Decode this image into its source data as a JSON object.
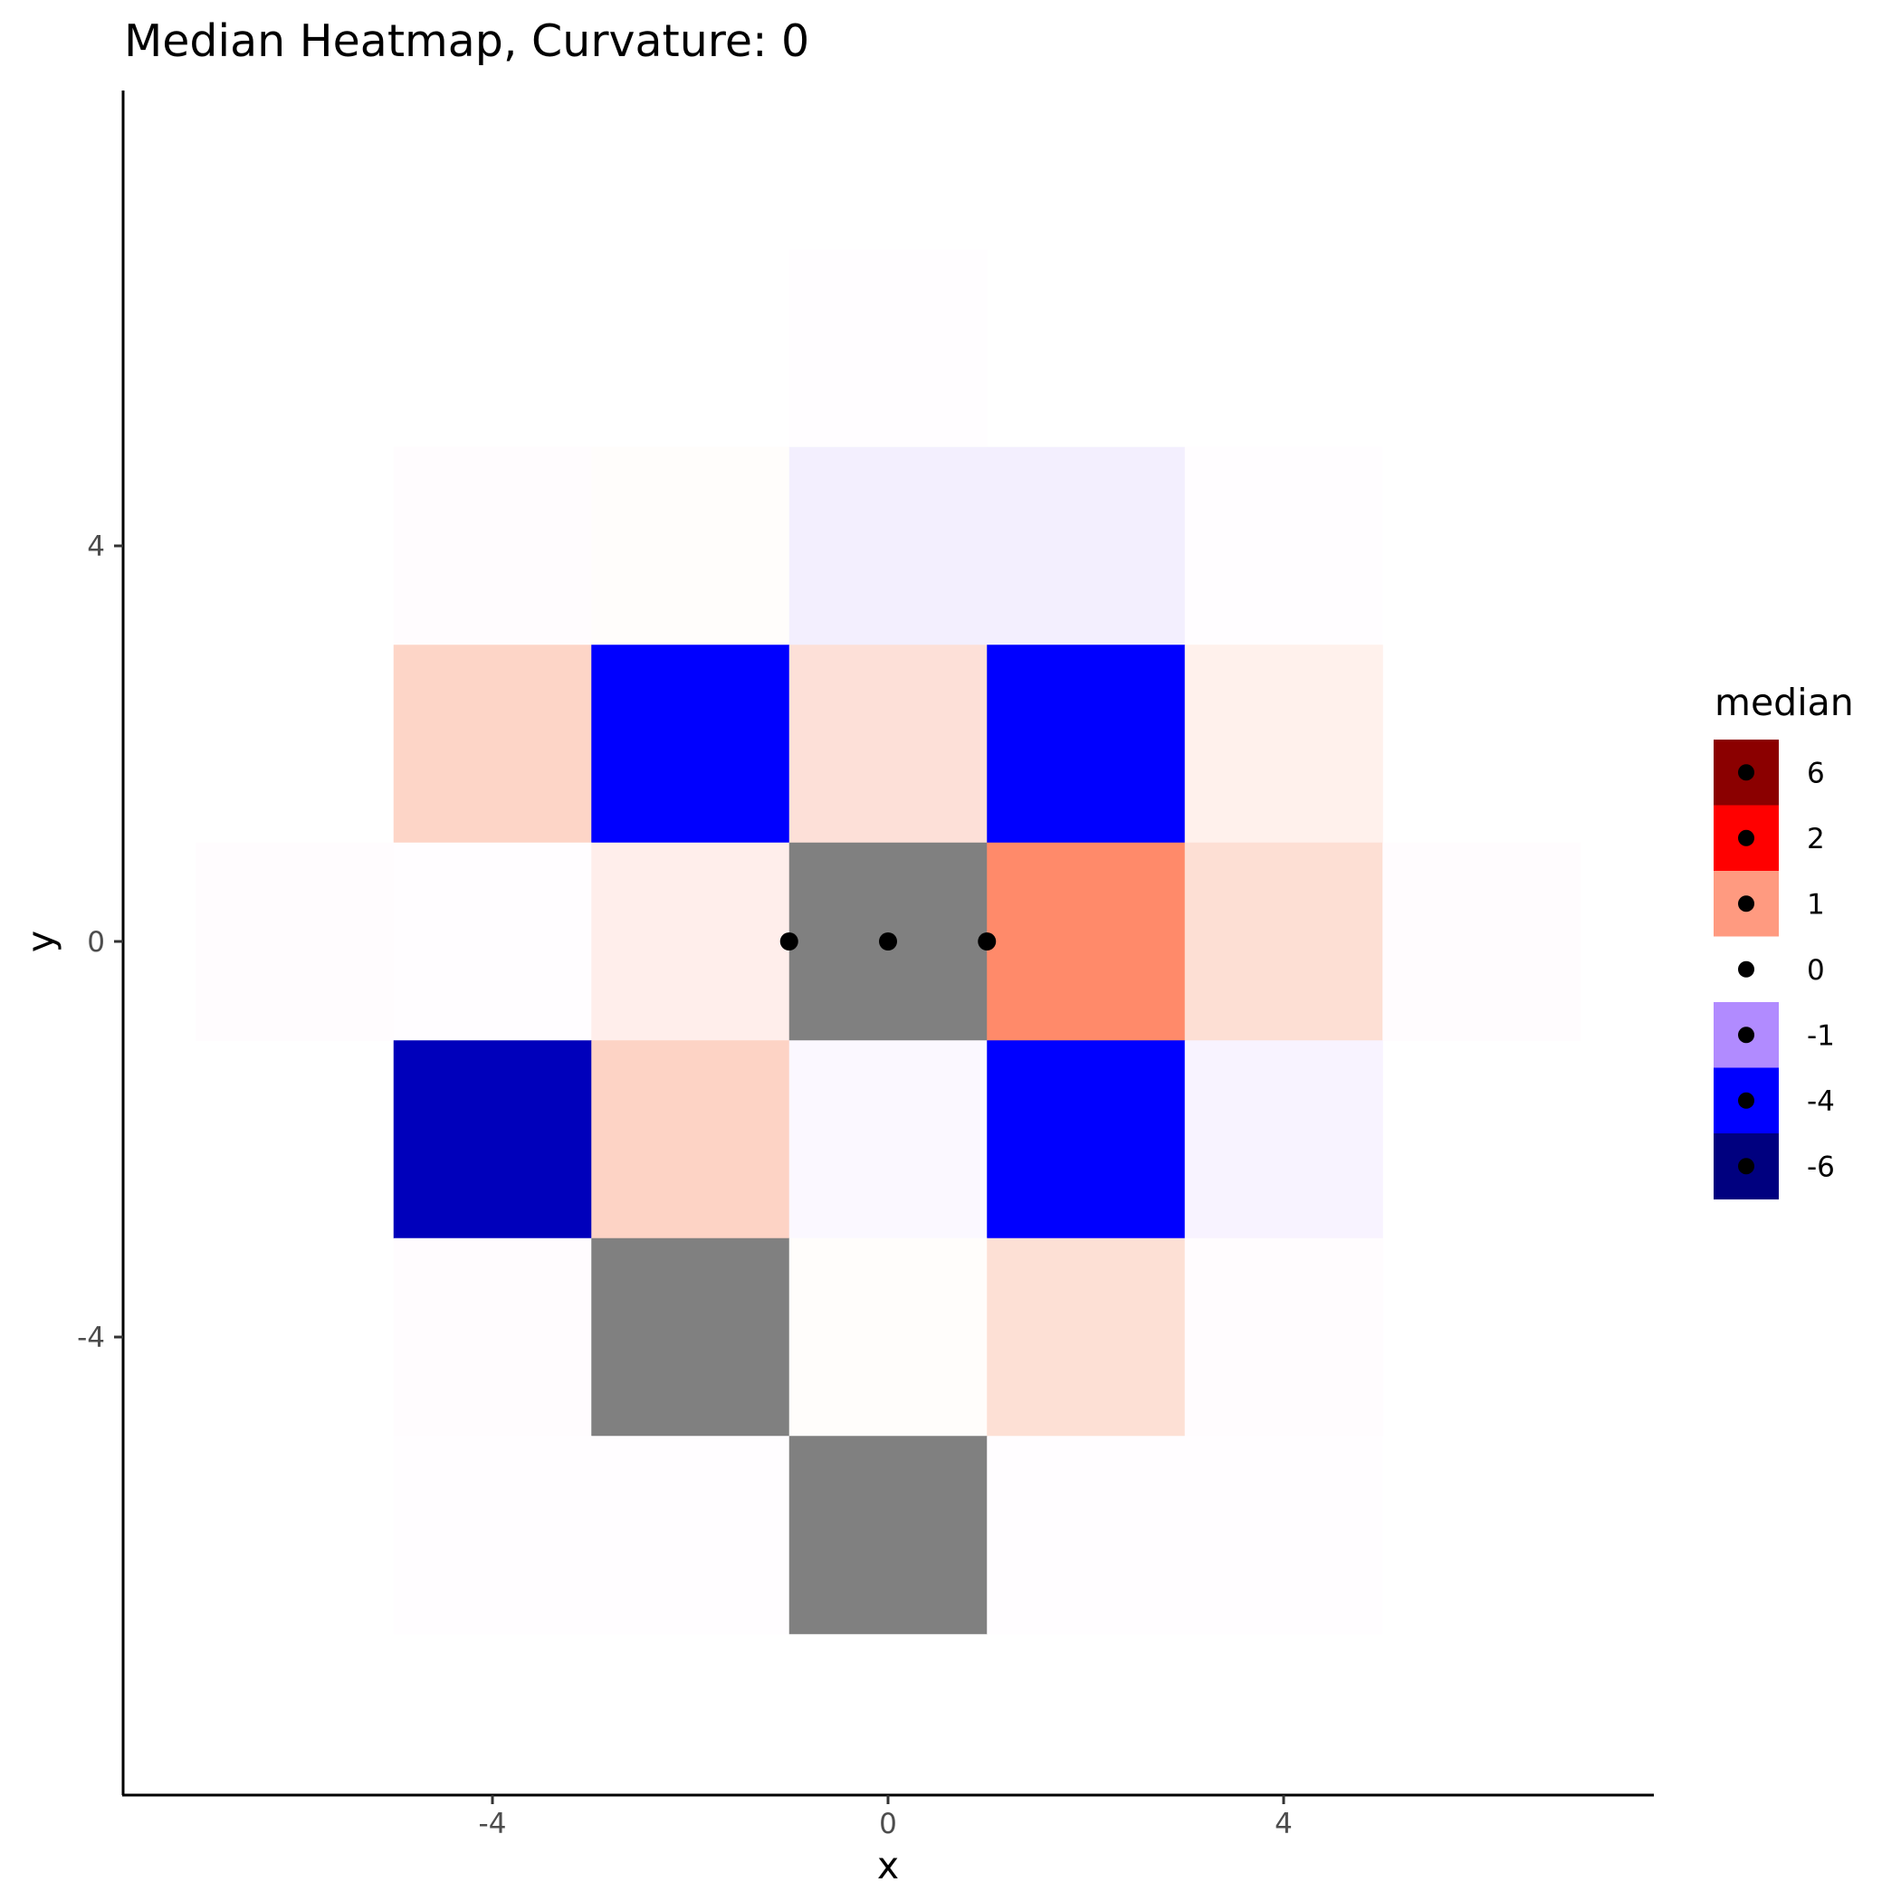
{
  "chart_data": {
    "type": "heatmap",
    "title": "Median Heatmap, Curvature:  0",
    "xlabel": "x",
    "ylabel": "y",
    "xlim": [
      -8,
      8
    ],
    "ylim": [
      -8,
      8
    ],
    "x_ticks": [
      -4,
      0,
      4
    ],
    "y_ticks": [
      -4,
      0,
      4
    ],
    "tile_size": 2,
    "grid": false,
    "legend": {
      "title": "median",
      "placement": "right",
      "entries": [
        {
          "label": "6",
          "color": "#8b0000"
        },
        {
          "label": "2",
          "color": "#ff0000"
        },
        {
          "label": "1",
          "color": "#ff9a80"
        },
        {
          "label": "0",
          "color": "#ffffff"
        },
        {
          "label": "-1",
          "color": "#b18bff"
        },
        {
          "label": "-4",
          "color": "#0000ff"
        },
        {
          "label": "-6",
          "color": "#00007f"
        }
      ]
    },
    "na_color": "#808080",
    "tiles": [
      {
        "x": 0,
        "y": 6,
        "color": "#fffdff"
      },
      {
        "x": -4,
        "y": 4,
        "color": "#fffcfe"
      },
      {
        "x": -2,
        "y": 4,
        "color": "#fffdfb"
      },
      {
        "x": 0,
        "y": 4,
        "color": "#f3effe"
      },
      {
        "x": 2,
        "y": 4,
        "color": "#f3effe"
      },
      {
        "x": 4,
        "y": 4,
        "color": "#fffdff"
      },
      {
        "x": -4,
        "y": 2,
        "color": "#fdd5c7"
      },
      {
        "x": -2,
        "y": 2,
        "color": "#0000ff"
      },
      {
        "x": 0,
        "y": 2,
        "color": "#fde0d8"
      },
      {
        "x": 2,
        "y": 2,
        "color": "#0000ff"
      },
      {
        "x": 4,
        "y": 2,
        "color": "#fff1ec"
      },
      {
        "x": -6,
        "y": 0,
        "color": "#fffcfe"
      },
      {
        "x": -4,
        "y": 0,
        "color": "#fffdff"
      },
      {
        "x": -2,
        "y": 0,
        "color": "#ffeeeb"
      },
      {
        "x": 0,
        "y": 0,
        "color": "#808080"
      },
      {
        "x": 2,
        "y": 0,
        "color": "#ff8a6a"
      },
      {
        "x": 4,
        "y": 0,
        "color": "#fddfd4"
      },
      {
        "x": 6,
        "y": 0,
        "color": "#fffcfe"
      },
      {
        "x": -4,
        "y": -2,
        "color": "#0000bb"
      },
      {
        "x": -2,
        "y": -2,
        "color": "#fdd3c5"
      },
      {
        "x": 0,
        "y": -2,
        "color": "#fbf8ff"
      },
      {
        "x": 2,
        "y": -2,
        "color": "#0000ff"
      },
      {
        "x": 4,
        "y": -2,
        "color": "#f8f3ff"
      },
      {
        "x": -4,
        "y": -4,
        "color": "#fffcfe"
      },
      {
        "x": -2,
        "y": -4,
        "color": "#808080"
      },
      {
        "x": 0,
        "y": -4,
        "color": "#fffdfb"
      },
      {
        "x": 2,
        "y": -4,
        "color": "#fde0d5"
      },
      {
        "x": 4,
        "y": -4,
        "color": "#fffcfe"
      },
      {
        "x": -4,
        "y": -6,
        "color": "#fffdff"
      },
      {
        "x": -2,
        "y": -6,
        "color": "#fffdff"
      },
      {
        "x": 0,
        "y": -6,
        "color": "#808080"
      },
      {
        "x": 2,
        "y": -6,
        "color": "#fffdff"
      },
      {
        "x": 4,
        "y": -6,
        "color": "#fffdff"
      }
    ],
    "points": [
      {
        "x": -1,
        "y": 0
      },
      {
        "x": 0,
        "y": 0
      },
      {
        "x": 1,
        "y": 0
      }
    ]
  }
}
